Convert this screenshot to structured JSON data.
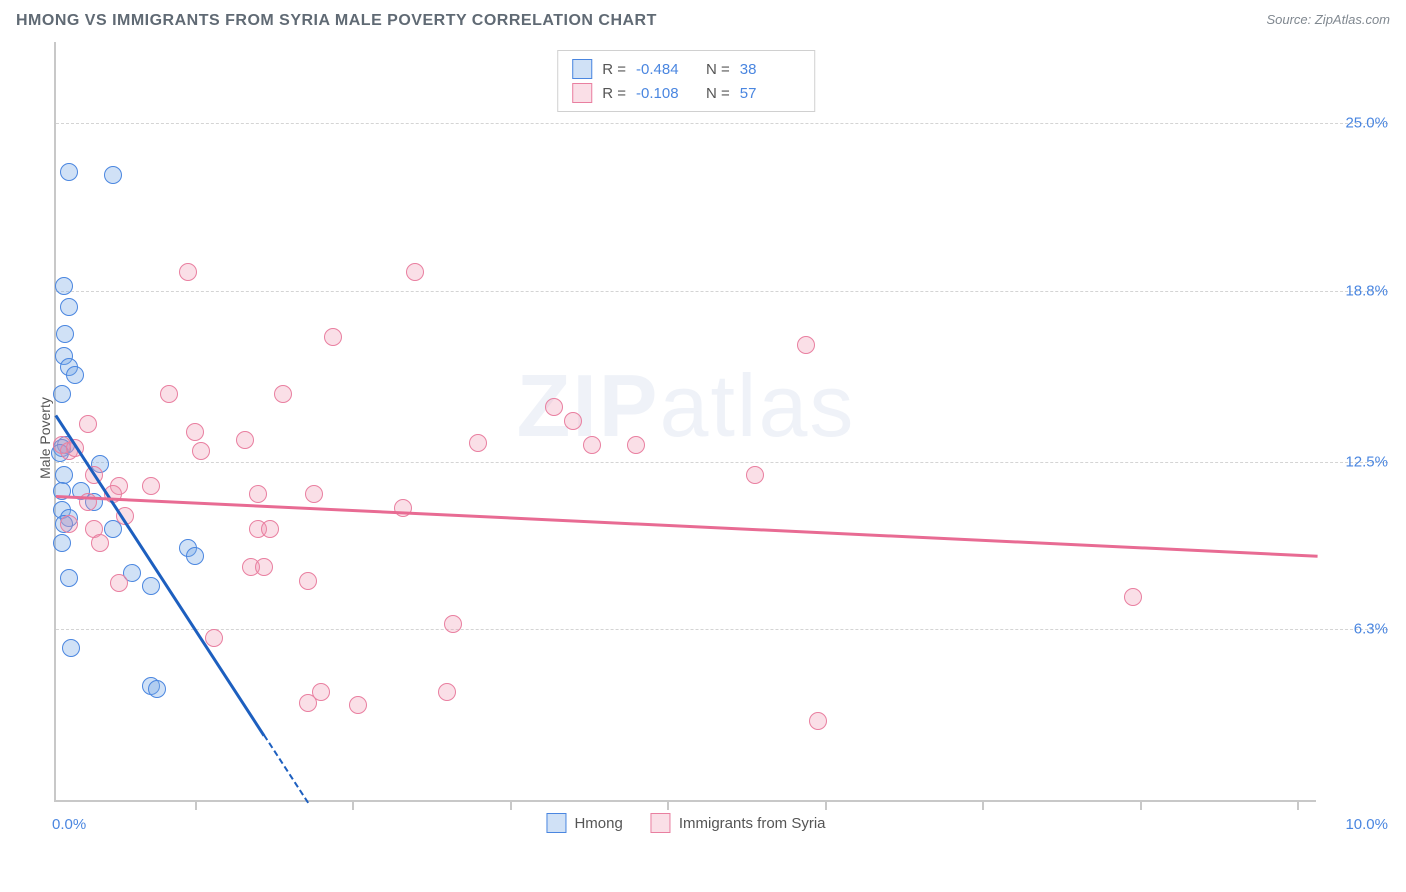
{
  "header": {
    "title": "HMONG VS IMMIGRANTS FROM SYRIA MALE POVERTY CORRELATION CHART",
    "source_label": "Source: ZipAtlas.com"
  },
  "watermark": {
    "text_bold": "ZIP",
    "text_light": "atlas"
  },
  "chart": {
    "type": "scatter",
    "y_axis_label": "Male Poverty",
    "background_color": "#ffffff",
    "grid_color": "#d4d4d4",
    "axis_color": "#c8c8c8",
    "tick_label_color": "#4a86e0",
    "xlim": [
      0,
      10
    ],
    "ylim": [
      0,
      28
    ],
    "x_ticks": [
      1.1,
      2.35,
      3.6,
      4.85,
      6.1,
      7.35,
      8.6,
      9.85
    ],
    "x_min_label": "0.0%",
    "x_max_label": "10.0%",
    "y_ticks": [
      {
        "value": 6.3,
        "label": "6.3%"
      },
      {
        "value": 12.5,
        "label": "12.5%"
      },
      {
        "value": 18.8,
        "label": "18.8%"
      },
      {
        "value": 25.0,
        "label": "25.0%"
      }
    ],
    "series": [
      {
        "name": "Hmong",
        "legend_label": "Hmong",
        "point_fill": "rgba(120,170,230,0.35)",
        "point_stroke": "#4a86e0",
        "line_color": "#1d5fbf",
        "r_value": "-0.484",
        "n_value": "38",
        "trend": {
          "x1": 0.0,
          "y1": 14.3,
          "x2": 1.65,
          "y2": 2.5,
          "dash_to_x": 2.0,
          "dash_to_y": 0.0
        },
        "points": [
          [
            0.1,
            23.2
          ],
          [
            0.45,
            23.1
          ],
          [
            0.06,
            19.0
          ],
          [
            0.1,
            18.2
          ],
          [
            0.07,
            17.2
          ],
          [
            0.06,
            16.4
          ],
          [
            0.1,
            16.0
          ],
          [
            0.15,
            15.7
          ],
          [
            0.05,
            15.0
          ],
          [
            0.08,
            13.1
          ],
          [
            0.05,
            13.0
          ],
          [
            0.03,
            12.8
          ],
          [
            0.35,
            12.4
          ],
          [
            0.06,
            12.0
          ],
          [
            0.05,
            11.4
          ],
          [
            0.2,
            11.4
          ],
          [
            0.3,
            11.0
          ],
          [
            0.05,
            10.7
          ],
          [
            0.1,
            10.4
          ],
          [
            0.06,
            10.2
          ],
          [
            0.45,
            10.0
          ],
          [
            0.05,
            9.5
          ],
          [
            1.05,
            9.3
          ],
          [
            1.1,
            9.0
          ],
          [
            0.6,
            8.4
          ],
          [
            0.1,
            8.2
          ],
          [
            0.75,
            7.9
          ],
          [
            0.12,
            5.6
          ],
          [
            0.75,
            4.2
          ],
          [
            0.8,
            4.1
          ]
        ]
      },
      {
        "name": "Immigrants from Syria",
        "legend_label": "Immigrants from Syria",
        "point_fill": "rgba(240,150,175,0.30)",
        "point_stroke": "#e97fa0",
        "line_color": "#e86b93",
        "r_value": "-0.108",
        "n_value": "57",
        "trend": {
          "x1": 0.0,
          "y1": 11.3,
          "x2": 10.0,
          "y2": 9.1
        },
        "points": [
          [
            1.05,
            19.5
          ],
          [
            2.85,
            19.5
          ],
          [
            2.2,
            17.1
          ],
          [
            0.25,
            13.9
          ],
          [
            5.95,
            16.8
          ],
          [
            0.9,
            15.0
          ],
          [
            1.8,
            15.0
          ],
          [
            3.95,
            14.5
          ],
          [
            0.05,
            13.1
          ],
          [
            1.15,
            12.9
          ],
          [
            1.1,
            13.6
          ],
          [
            1.5,
            13.3
          ],
          [
            0.1,
            12.9
          ],
          [
            0.5,
            11.6
          ],
          [
            0.75,
            11.6
          ],
          [
            0.45,
            11.3
          ],
          [
            0.3,
            12.0
          ],
          [
            0.25,
            11.0
          ],
          [
            0.55,
            10.5
          ],
          [
            1.6,
            11.3
          ],
          [
            2.05,
            11.3
          ],
          [
            2.75,
            10.8
          ],
          [
            0.1,
            10.2
          ],
          [
            0.3,
            10.0
          ],
          [
            0.35,
            9.5
          ],
          [
            1.6,
            10.0
          ],
          [
            1.7,
            10.0
          ],
          [
            3.35,
            13.2
          ],
          [
            4.25,
            13.1
          ],
          [
            4.6,
            13.1
          ],
          [
            4.1,
            14.0
          ],
          [
            5.55,
            12.0
          ],
          [
            1.55,
            8.6
          ],
          [
            2.0,
            8.1
          ],
          [
            1.65,
            8.6
          ],
          [
            0.5,
            8.0
          ],
          [
            8.55,
            7.5
          ],
          [
            3.15,
            6.5
          ],
          [
            2.0,
            3.6
          ],
          [
            2.1,
            4.0
          ],
          [
            3.1,
            4.0
          ],
          [
            2.4,
            3.5
          ],
          [
            1.25,
            6.0
          ],
          [
            6.05,
            2.9
          ],
          [
            0.15,
            13.0
          ]
        ]
      }
    ]
  },
  "legend_top": {
    "r_prefix": "R = ",
    "n_prefix": "N = "
  }
}
